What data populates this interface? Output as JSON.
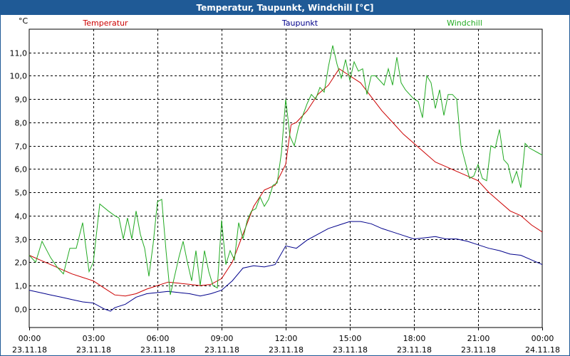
{
  "window": {
    "title": "Temperatur, Taupunkt, Windchill [°C]"
  },
  "chart_data": {
    "type": "line",
    "title": "Temperatur, Taupunkt, Windchill [°C]",
    "ylabel": "°C",
    "xlabel": "",
    "ylim": [
      -0.8,
      12.0
    ],
    "xlim": [
      0,
      24
    ],
    "grid": true,
    "legend_placement": "top",
    "yticks": [
      0,
      1,
      2,
      3,
      4,
      5,
      6,
      7,
      8,
      9,
      10,
      11
    ],
    "ytick_labels": [
      "0,0",
      "1,0",
      "2,0",
      "3,0",
      "4,0",
      "5,0",
      "6,0",
      "7,0",
      "8,0",
      "9,0",
      "10,0",
      "11,0"
    ],
    "xticks": [
      0,
      3,
      6,
      9,
      12,
      15,
      18,
      21,
      24
    ],
    "xtick_labels": [
      {
        "time": "00:00",
        "date": "23.11.18"
      },
      {
        "time": "03:00",
        "date": "23.11.18"
      },
      {
        "time": "06:00",
        "date": "23.11.18"
      },
      {
        "time": "09:00",
        "date": "23.11.18"
      },
      {
        "time": "12:00",
        "date": "23.11.18"
      },
      {
        "time": "15:00",
        "date": "23.11.18"
      },
      {
        "time": "18:00",
        "date": "23.11.18"
      },
      {
        "time": "21:00",
        "date": "23.11.18"
      },
      {
        "time": "00:00",
        "date": "24.11.18"
      }
    ],
    "series": [
      {
        "name": "Temperatur",
        "color": "#cc0000",
        "x": [
          0,
          0.5,
          1,
          1.5,
          2,
          2.5,
          3,
          3.5,
          4,
          4.5,
          5,
          5.5,
          6,
          6.5,
          7,
          7.5,
          8,
          8.5,
          9,
          9.5,
          10,
          10.5,
          11,
          11.5,
          12,
          12.25,
          12.5,
          13,
          13.5,
          14,
          14.5,
          15,
          15.5,
          16,
          16.5,
          17,
          17.5,
          18,
          18.5,
          19,
          19.5,
          20,
          20.5,
          21,
          21.5,
          22,
          22.5,
          23,
          23.5,
          24
        ],
        "y": [
          2.3,
          2.1,
          1.9,
          1.7,
          1.5,
          1.35,
          1.2,
          0.9,
          0.6,
          0.55,
          0.65,
          0.85,
          1.0,
          1.15,
          1.1,
          1.05,
          1.0,
          1.05,
          1.3,
          2.0,
          3.2,
          4.4,
          5.1,
          5.3,
          6.2,
          7.9,
          8.0,
          8.5,
          9.2,
          9.6,
          10.3,
          10.0,
          9.7,
          9.1,
          8.5,
          8.0,
          7.5,
          7.1,
          6.7,
          6.3,
          6.1,
          5.9,
          5.7,
          5.5,
          5.0,
          4.6,
          4.2,
          4.0,
          3.6,
          3.3
        ]
      },
      {
        "name": "Taupunkt",
        "color": "#00008b",
        "x": [
          0,
          0.5,
          1,
          1.5,
          2,
          2.5,
          3,
          3.5,
          3.8,
          4,
          4.5,
          5,
          5.5,
          6,
          6.5,
          7,
          7.5,
          8,
          8.5,
          9,
          9.5,
          10,
          10.5,
          11,
          11.5,
          12,
          12.5,
          13,
          13.5,
          14,
          14.5,
          15,
          15.5,
          16,
          16.5,
          17,
          17.5,
          18,
          18.5,
          19,
          19.5,
          20,
          20.5,
          21,
          21.5,
          22,
          22.5,
          23,
          23.5,
          24
        ],
        "y": [
          0.8,
          0.7,
          0.6,
          0.5,
          0.4,
          0.3,
          0.25,
          0.0,
          -0.1,
          0.05,
          0.2,
          0.5,
          0.65,
          0.7,
          0.75,
          0.7,
          0.65,
          0.55,
          0.65,
          0.8,
          1.2,
          1.75,
          1.85,
          1.8,
          1.9,
          2.7,
          2.6,
          2.95,
          3.2,
          3.45,
          3.6,
          3.75,
          3.75,
          3.65,
          3.45,
          3.3,
          3.15,
          3.0,
          3.05,
          3.1,
          3.0,
          3.0,
          2.9,
          2.75,
          2.6,
          2.5,
          2.35,
          2.3,
          2.1,
          1.9
        ]
      },
      {
        "name": "Windchill",
        "color": "#22aa22",
        "x": [
          0,
          0.3,
          0.6,
          1,
          1.3,
          1.6,
          1.9,
          2.2,
          2.5,
          2.8,
          3.0,
          3.3,
          3.7,
          4.0,
          4.2,
          4.4,
          4.6,
          4.8,
          5.0,
          5.2,
          5.4,
          5.6,
          5.8,
          6.0,
          6.2,
          6.4,
          6.6,
          6.8,
          7.0,
          7.2,
          7.4,
          7.6,
          7.8,
          8.0,
          8.2,
          8.4,
          8.6,
          8.8,
          9.0,
          9.2,
          9.4,
          9.6,
          9.8,
          10.0,
          10.2,
          10.4,
          10.6,
          10.8,
          11.0,
          11.2,
          11.4,
          11.6,
          11.8,
          12.0,
          12.2,
          12.4,
          12.6,
          12.8,
          13.0,
          13.2,
          13.4,
          13.6,
          13.8,
          14.0,
          14.2,
          14.4,
          14.6,
          14.8,
          15.0,
          15.2,
          15.4,
          15.6,
          15.8,
          16.0,
          16.2,
          16.4,
          16.6,
          16.8,
          17.0,
          17.2,
          17.4,
          17.6,
          17.8,
          18.0,
          18.2,
          18.4,
          18.6,
          18.8,
          19.0,
          19.2,
          19.4,
          19.6,
          19.8,
          20.0,
          20.2,
          20.4,
          20.6,
          20.8,
          21.0,
          21.2,
          21.4,
          21.6,
          21.8,
          22.0,
          22.2,
          22.4,
          22.6,
          22.8,
          23.0,
          23.2,
          23.4,
          23.6,
          23.8,
          24.0
        ],
        "y": [
          2.3,
          2.0,
          2.9,
          2.2,
          1.8,
          1.5,
          2.6,
          2.6,
          3.7,
          1.6,
          2.0,
          4.5,
          4.2,
          4.0,
          3.9,
          3.0,
          3.9,
          3.0,
          4.2,
          3.2,
          2.6,
          1.4,
          2.8,
          4.6,
          4.7,
          2.5,
          0.6,
          1.4,
          2.2,
          2.9,
          2.0,
          1.2,
          2.5,
          1.0,
          2.5,
          1.6,
          1.0,
          0.9,
          3.8,
          1.9,
          2.5,
          2.1,
          3.7,
          3.0,
          3.8,
          4.2,
          4.3,
          4.8,
          4.4,
          4.7,
          5.3,
          5.4,
          6.7,
          9.0,
          7.4,
          7.0,
          7.8,
          8.3,
          8.8,
          9.2,
          9.0,
          9.5,
          9.3,
          10.4,
          11.3,
          10.5,
          9.9,
          10.7,
          9.8,
          10.6,
          10.2,
          10.3,
          9.2,
          10.0,
          10.0,
          9.8,
          9.6,
          10.3,
          9.6,
          10.8,
          9.7,
          9.4,
          9.2,
          9.0,
          8.9,
          8.2,
          10.0,
          9.7,
          8.6,
          9.4,
          8.3,
          9.2,
          9.2,
          9.0,
          7.0,
          6.3,
          5.6,
          5.7,
          6.2,
          5.6,
          5.5,
          7.0,
          6.9,
          7.7,
          6.4,
          6.2,
          5.4,
          5.9,
          5.2,
          7.1,
          6.9,
          6.8,
          6.7,
          6.6
        ]
      }
    ]
  }
}
